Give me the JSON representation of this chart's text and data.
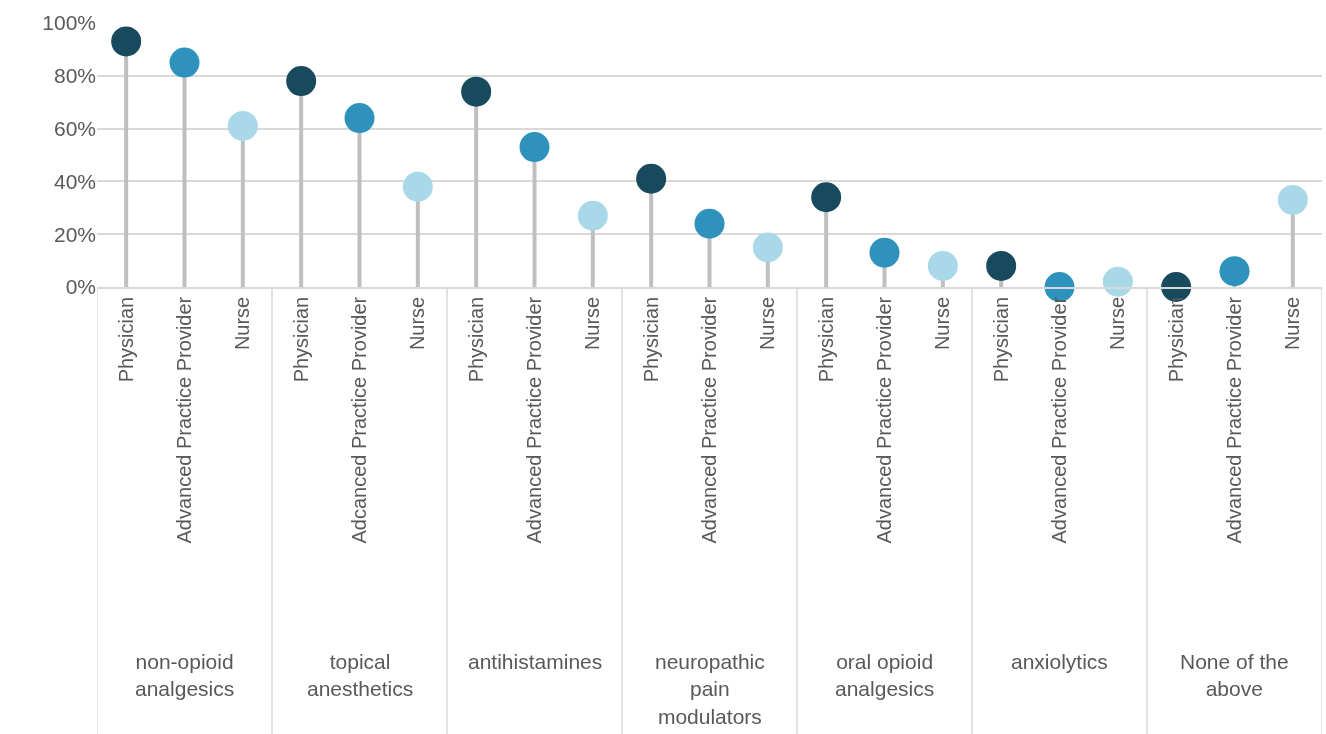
{
  "chart_data": {
    "type": "lollipop",
    "categories": [
      "Physician",
      "Advanced Practice Provider",
      "Nurse",
      "Physician",
      "Adcanced Practice Provider",
      "Nurse",
      "Physician",
      "Advanced Practice Provider",
      "Nurse",
      "Physician",
      "Advanced Practice Provider",
      "Nurse",
      "Physician",
      "Advanced Practice Provider",
      "Nurse",
      "Physician",
      "Advanced Practice Provider",
      "Nurse",
      "Physician",
      "Advanced Practice Provider",
      "Nurse"
    ],
    "values": [
      93,
      85,
      61,
      78,
      64,
      38,
      74,
      53,
      27,
      41,
      24,
      15,
      34,
      13,
      8,
      8,
      0,
      2,
      0,
      6,
      33
    ],
    "colors": [
      "#184a5e",
      "#2e92bd",
      "#a9d9e8",
      "#184a5e",
      "#2e92bd",
      "#a9d9e8",
      "#184a5e",
      "#2e92bd",
      "#a9d9e8",
      "#184a5e",
      "#2e92bd",
      "#a9d9e8",
      "#184a5e",
      "#2e92bd",
      "#a9d9e8",
      "#184a5e",
      "#2e92bd",
      "#a9d9e8",
      "#184a5e",
      "#2e92bd",
      "#a9d9e8"
    ],
    "annotations": [
      "non-opioid analgesics",
      "topical anesthetics",
      "antihistamines",
      "neuropathic pain modulators",
      "oral opioid analgesics",
      "anxiolytics",
      "None of the above"
    ],
    "ylim": [
      0,
      100
    ],
    "yticks": [
      {
        "value": 0,
        "label": "0%"
      },
      {
        "value": 20,
        "label": "20%"
      },
      {
        "value": 40,
        "label": "40%"
      },
      {
        "value": 60,
        "label": "60%"
      },
      {
        "value": 80,
        "label": "80%"
      },
      {
        "value": 100,
        "label": "100%"
      }
    ],
    "grid": true,
    "marker": "circle"
  }
}
